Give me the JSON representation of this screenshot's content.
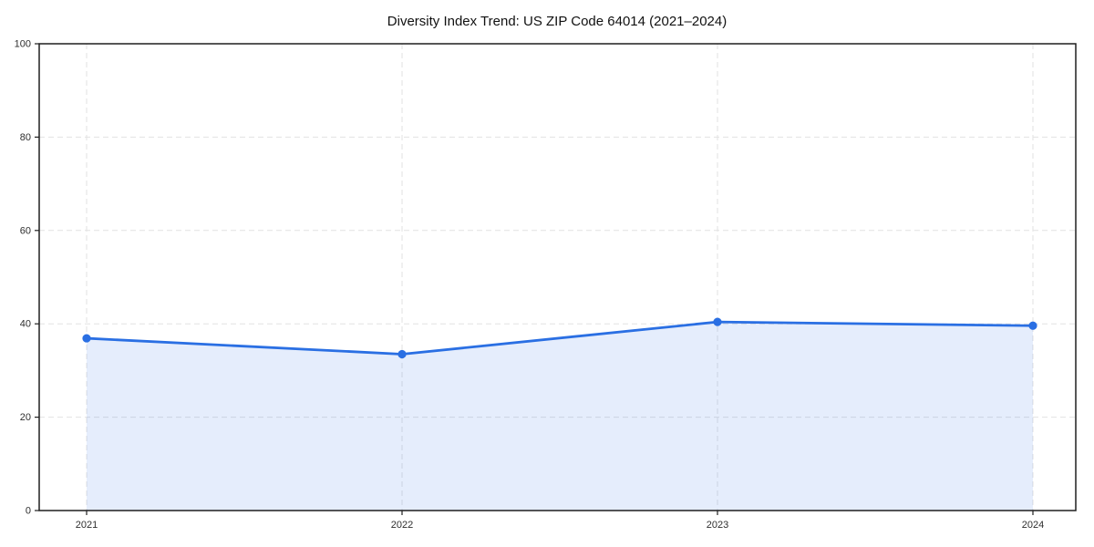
{
  "chart_data": {
    "type": "area",
    "title": "Diversity Index Trend: US ZIP Code 64014 (2021–2024)",
    "categories": [
      "2021",
      "2022",
      "2023",
      "2024"
    ],
    "series": [
      {
        "name": "Diversity Index",
        "values": [
          36.9,
          33.5,
          40.4,
          39.6
        ]
      }
    ],
    "xlabel": "",
    "ylabel": "",
    "ylim": [
      0,
      100
    ],
    "yticks": [
      0,
      20,
      40,
      60,
      80,
      100
    ],
    "grid": "dashed",
    "legend": "none",
    "line_color": "#2a6fe3",
    "fill_color": "#e8effc",
    "grid_color": "#e2e2e2",
    "spine_color": "#1f1f1f",
    "marker": "circle"
  }
}
